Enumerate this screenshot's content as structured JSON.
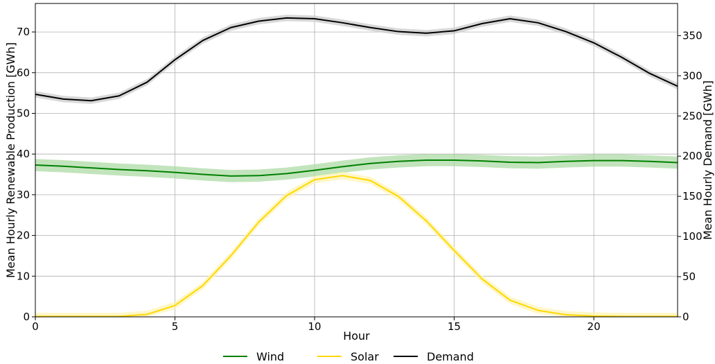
{
  "chart_data": {
    "type": "line",
    "title": "",
    "xlabel": "Hour",
    "ylabel_left": "Mean Hourly Renewable Production [GWh]",
    "ylabel_right": "Mean Hourly Demand [GWh]",
    "xlim": [
      0,
      23
    ],
    "ylim_left": [
      0,
      77
    ],
    "ylim_right": [
      0,
      390
    ],
    "xticks": [
      0,
      5,
      10,
      15,
      20
    ],
    "yticks_left": [
      0,
      10,
      20,
      30,
      40,
      50,
      60,
      70
    ],
    "yticks_right": [
      0,
      50,
      100,
      150,
      200,
      250,
      300,
      350
    ],
    "grid": true,
    "legend_position": "bottom-center",
    "x": [
      0,
      1,
      2,
      3,
      4,
      5,
      6,
      7,
      8,
      9,
      10,
      11,
      12,
      13,
      14,
      15,
      16,
      17,
      18,
      19,
      20,
      21,
      22,
      23
    ],
    "series": [
      {
        "name": "Wind",
        "axis": "left",
        "color": "#008000",
        "band_color": "#a8d8a0",
        "values": [
          37.3,
          37.0,
          36.6,
          36.2,
          35.9,
          35.5,
          35.0,
          34.6,
          34.7,
          35.2,
          36.0,
          36.9,
          37.7,
          38.2,
          38.5,
          38.5,
          38.3,
          38.0,
          37.9,
          38.2,
          38.4,
          38.4,
          38.2,
          37.9
        ],
        "band": 1.5
      },
      {
        "name": "Solar",
        "axis": "left",
        "color": "#ffd700",
        "band_color": "#fff3b0",
        "values": [
          0.1,
          0.1,
          0.1,
          0.1,
          0.6,
          2.8,
          7.7,
          15.0,
          23.3,
          29.8,
          33.7,
          34.7,
          33.5,
          29.6,
          23.6,
          16.3,
          9.3,
          4.1,
          1.6,
          0.5,
          0.2,
          0.1,
          0.1,
          0.1
        ],
        "band": 0.9
      },
      {
        "name": "Demand",
        "axis": "right",
        "color": "#000000",
        "band_color": "#c8c8c8",
        "values": [
          277,
          271,
          269,
          275,
          292,
          320,
          344,
          360,
          368,
          372,
          371,
          366,
          360,
          355,
          353,
          356,
          365,
          371,
          366,
          355,
          341,
          323,
          303,
          287
        ],
        "band": 4
      }
    ]
  }
}
